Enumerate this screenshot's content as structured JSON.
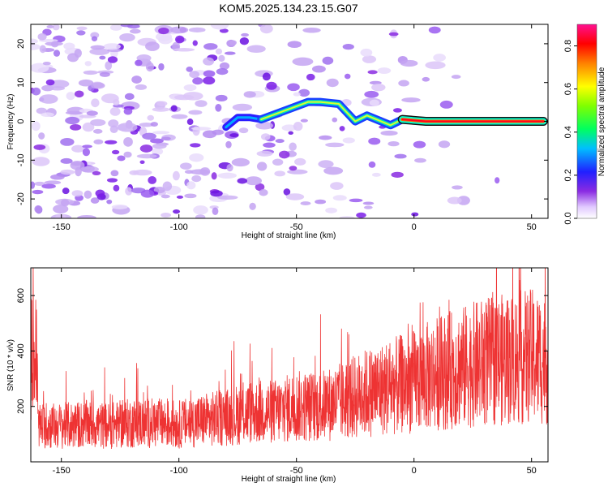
{
  "title": "KOM5.2025.134.23.15.G07",
  "colors": {
    "snr_line": "#ee3333",
    "axis": "#000000"
  },
  "chart_data": [
    {
      "type": "heatmap",
      "xlabel": "Height of straight line (km)",
      "ylabel": "Frequency (Hz)",
      "xlim": [
        -163,
        57
      ],
      "ylim": [
        -25,
        25
      ],
      "xticks": [
        -150,
        -100,
        -50,
        0,
        50
      ],
      "yticks": [
        -20,
        -10,
        0,
        10,
        20
      ],
      "colorbar": {
        "label": "Normalized spectral amplitude",
        "range": [
          0.0,
          0.9
        ],
        "ticks": [
          0.0,
          0.2,
          0.4,
          0.6,
          0.8
        ],
        "colormap": "rainbow"
      },
      "ridge": [
        {
          "x": -80,
          "y": -1.5
        },
        {
          "x": -75,
          "y": 1.0
        },
        {
          "x": -70,
          "y": 1.0
        },
        {
          "x": -65,
          "y": 0.5
        },
        {
          "x": -45,
          "y": 5.0
        },
        {
          "x": -40,
          "y": 5.0
        },
        {
          "x": -32,
          "y": 4.5
        },
        {
          "x": -25,
          "y": 0.0
        },
        {
          "x": -20,
          "y": 1.5
        },
        {
          "x": -10,
          "y": -1.0
        },
        {
          "x": -5,
          "y": 0.5
        },
        {
          "x": 5,
          "y": 0.0
        },
        {
          "x": 10,
          "y": 0.0
        },
        {
          "x": 55,
          "y": 0.0
        }
      ]
    },
    {
      "type": "line",
      "xlabel": "Height of straight line (km)",
      "ylabel": "SNR (10 * v/v)",
      "xlim": [
        -163,
        57
      ],
      "ylim": [
        0,
        700
      ],
      "xticks": [
        -150,
        -100,
        -50,
        0,
        50
      ],
      "yticks": [
        200,
        400,
        600
      ],
      "series": [
        {
          "x": [
            -160,
            -150,
            -140,
            -130,
            -120,
            -110,
            -100,
            -90,
            -80,
            -70,
            -60,
            -50,
            -40,
            -30,
            -20,
            -10,
            0,
            10,
            20,
            30,
            40,
            50,
            55
          ],
          "values": [
            130,
            130,
            135,
            130,
            140,
            140,
            135,
            150,
            160,
            180,
            180,
            200,
            200,
            220,
            250,
            270,
            290,
            320,
            340,
            360,
            370,
            380,
            370
          ]
        }
      ]
    }
  ]
}
